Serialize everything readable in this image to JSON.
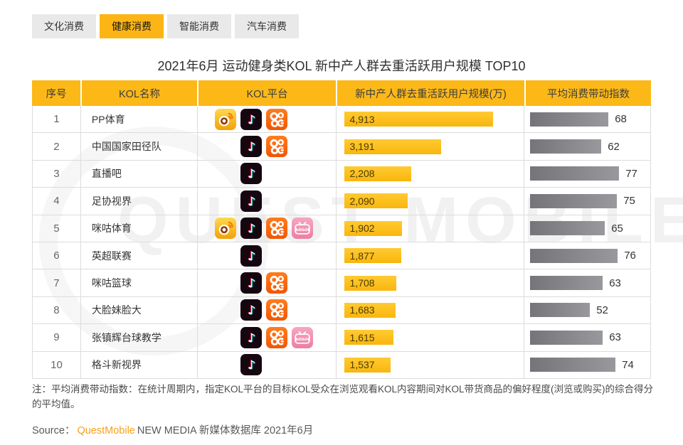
{
  "tabs": [
    {
      "label": "文化消费",
      "active": false
    },
    {
      "label": "健康消费",
      "active": true
    },
    {
      "label": "智能消费",
      "active": false
    },
    {
      "label": "汽车消费",
      "active": false
    }
  ],
  "title": "2021年6月 运动健身类KOL 新中产人群去重活跃用户规模 TOP10",
  "watermark": "QUEST MOBILE",
  "table": {
    "headers": [
      "序号",
      "KOL名称",
      "KOL平台",
      "新中产人群去重活跃用户规模(万)",
      "平均消费带动指数"
    ],
    "rows": [
      {
        "rank": "1",
        "name": "PP体育",
        "platforms": [
          "weibo",
          "douyin",
          "kuaishou"
        ],
        "value": 4913,
        "value_label": "4,913",
        "index": 68
      },
      {
        "rank": "2",
        "name": "中国国家田径队",
        "platforms": [
          "douyin",
          "kuaishou"
        ],
        "value": 3191,
        "value_label": "3,191",
        "index": 62
      },
      {
        "rank": "3",
        "name": "直播吧",
        "platforms": [
          "douyin"
        ],
        "value": 2208,
        "value_label": "2,208",
        "index": 77
      },
      {
        "rank": "4",
        "name": "足协视界",
        "platforms": [
          "douyin"
        ],
        "value": 2090,
        "value_label": "2,090",
        "index": 75
      },
      {
        "rank": "5",
        "name": "咪咕体育",
        "platforms": [
          "weibo",
          "douyin",
          "kuaishou",
          "bilibili"
        ],
        "value": 1902,
        "value_label": "1,902",
        "index": 65
      },
      {
        "rank": "6",
        "name": "英超联赛",
        "platforms": [
          "douyin"
        ],
        "value": 1877,
        "value_label": "1,877",
        "index": 76
      },
      {
        "rank": "7",
        "name": "咪咕篮球",
        "platforms": [
          "douyin",
          "kuaishou"
        ],
        "value": 1708,
        "value_label": "1,708",
        "index": 63
      },
      {
        "rank": "8",
        "name": "大脸妹脸大",
        "platforms": [
          "douyin",
          "kuaishou"
        ],
        "value": 1683,
        "value_label": "1,683",
        "index": 52
      },
      {
        "rank": "9",
        "name": "张镇辉台球教学",
        "platforms": [
          "douyin",
          "kuaishou",
          "bilibili"
        ],
        "value": 1615,
        "value_label": "1,615",
        "index": 63
      },
      {
        "rank": "10",
        "name": "格斗新视界",
        "platforms": [
          "douyin"
        ],
        "value": 1537,
        "value_label": "1,537",
        "index": 74
      }
    ]
  },
  "chart_data": {
    "type": "bar",
    "orientation": "horizontal",
    "title": "2021年6月 运动健身类KOL 新中产人群去重活跃用户规模 TOP10",
    "categories": [
      "PP体育",
      "中国国家田径队",
      "直播吧",
      "足协视界",
      "咪咕体育",
      "英超联赛",
      "咪咕篮球",
      "大脸妹脸大",
      "张镇辉台球教学",
      "格斗新视界"
    ],
    "series": [
      {
        "name": "新中产人群去重活跃用户规模(万)",
        "values": [
          4913,
          3191,
          2208,
          2090,
          1902,
          1877,
          1708,
          1683,
          1615,
          1537
        ]
      },
      {
        "name": "平均消费带动指数",
        "values": [
          68,
          62,
          77,
          75,
          65,
          76,
          63,
          52,
          63,
          74
        ]
      }
    ],
    "platforms_per_kol": [
      [
        "微博",
        "抖音",
        "快手"
      ],
      [
        "抖音",
        "快手"
      ],
      [
        "抖音"
      ],
      [
        "抖音"
      ],
      [
        "微博",
        "抖音",
        "快手",
        "哔哩哔哩"
      ],
      [
        "抖音"
      ],
      [
        "抖音",
        "快手"
      ],
      [
        "抖音",
        "快手"
      ],
      [
        "抖音",
        "快手",
        "哔哩哔哩"
      ],
      [
        "抖音"
      ]
    ],
    "legend_position": "none",
    "grid": false
  },
  "note": "注：平均消费带动指数：在统计周期内，指定KOL平台的目标KOL受众在浏览观看KOL内容期间对KOL带货商品的偏好程度(浏览或购买)的综合得分的平均值。",
  "source": {
    "prefix": "Source：",
    "brand": "QuestMobile",
    "suffix": "NEW MEDIA 新媒体数据库 2021年6月"
  },
  "colors": {
    "header_yellow": "#fcb817",
    "bar_yellow": "#f9b60d",
    "bar_gray": "#8a8a8e",
    "tab_active": "#fdb515",
    "brand_orange": "#f7a11a"
  }
}
